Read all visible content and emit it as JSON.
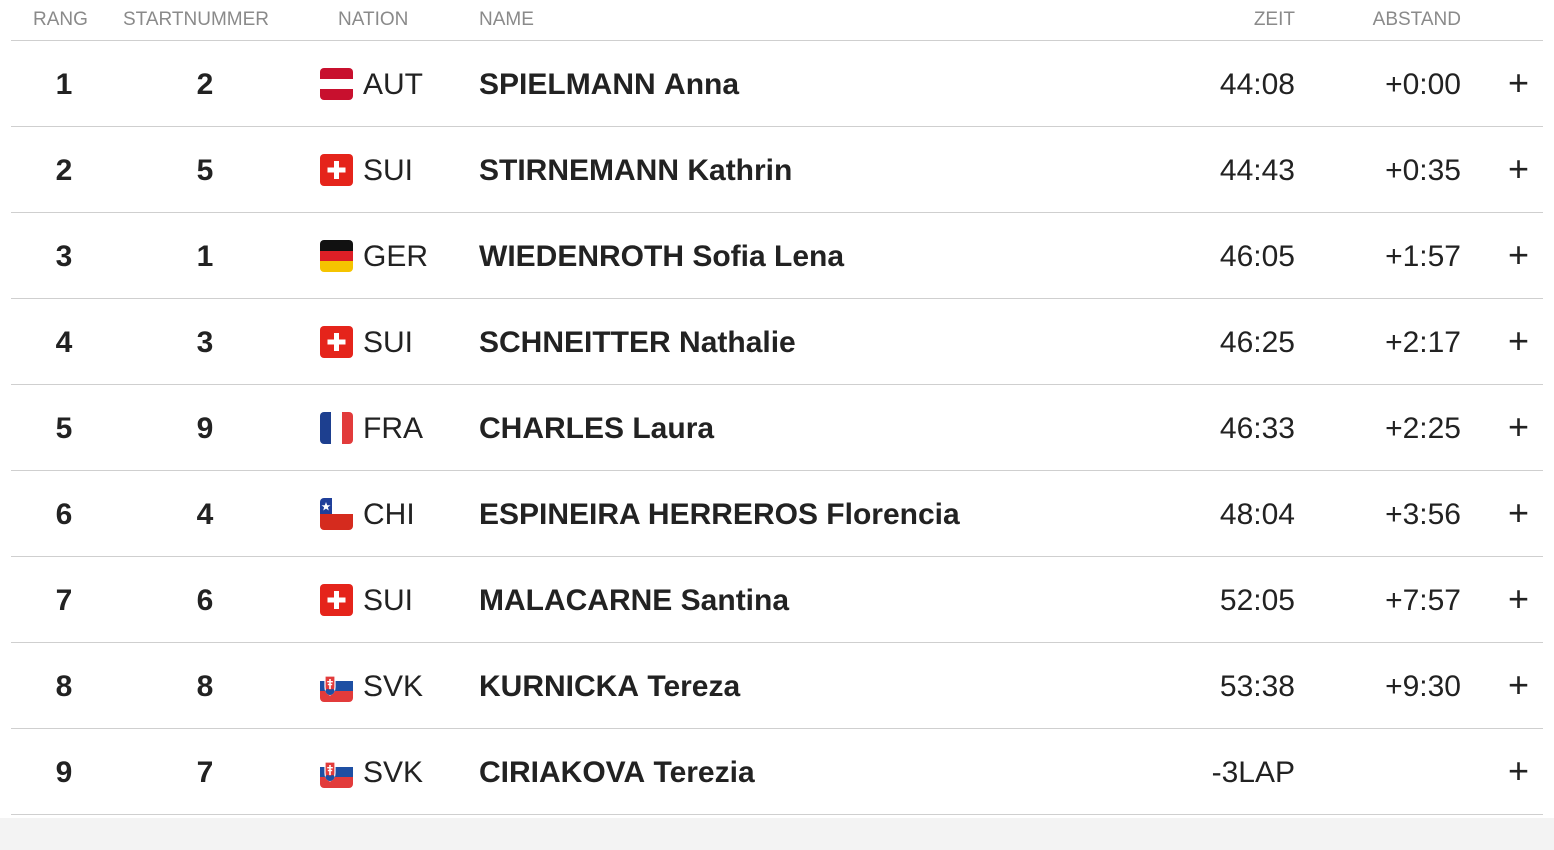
{
  "columns": {
    "rank": "RANG",
    "bib": "STARTNUMMER",
    "nation": "NATION",
    "name": "NAME",
    "time": "ZEIT",
    "gap": "ABSTAND"
  },
  "expand_label": "+",
  "rows": [
    {
      "rank": "1",
      "bib": "2",
      "flag": "aut-flag-icon",
      "nation": "AUT",
      "last": "SPIELMANN",
      "first": "Anna",
      "time": "44:08",
      "gap": "+0:00"
    },
    {
      "rank": "2",
      "bib": "5",
      "flag": "sui-flag-icon",
      "nation": "SUI",
      "last": "STIRNEMANN",
      "first": "Kathrin",
      "time": "44:43",
      "gap": "+0:35"
    },
    {
      "rank": "3",
      "bib": "1",
      "flag": "ger-flag-icon",
      "nation": "GER",
      "last": "WIEDENROTH",
      "first": "Sofia Lena",
      "time": "46:05",
      "gap": "+1:57"
    },
    {
      "rank": "4",
      "bib": "3",
      "flag": "sui-flag-icon",
      "nation": "SUI",
      "last": "SCHNEITTER",
      "first": "Nathalie",
      "time": "46:25",
      "gap": "+2:17"
    },
    {
      "rank": "5",
      "bib": "9",
      "flag": "fra-flag-icon",
      "nation": "FRA",
      "last": "CHARLES",
      "first": "Laura",
      "time": "46:33",
      "gap": "+2:25"
    },
    {
      "rank": "6",
      "bib": "4",
      "flag": "chi-flag-icon",
      "nation": "CHI",
      "last": "ESPINEIRA HERREROS",
      "first": "Florencia",
      "time": "48:04",
      "gap": "+3:56"
    },
    {
      "rank": "7",
      "bib": "6",
      "flag": "sui-flag-icon",
      "nation": "SUI",
      "last": "MALACARNE",
      "first": "Santina",
      "time": "52:05",
      "gap": "+7:57"
    },
    {
      "rank": "8",
      "bib": "8",
      "flag": "svk-flag-icon",
      "nation": "SVK",
      "last": "KURNICKA",
      "first": "Tereza",
      "time": "53:38",
      "gap": "+9:30"
    },
    {
      "rank": "9",
      "bib": "7",
      "flag": "svk-flag-icon",
      "nation": "SVK",
      "last": "CIRIAKOVA",
      "first": "Terezia",
      "time": "-3LAP",
      "gap": ""
    }
  ]
}
